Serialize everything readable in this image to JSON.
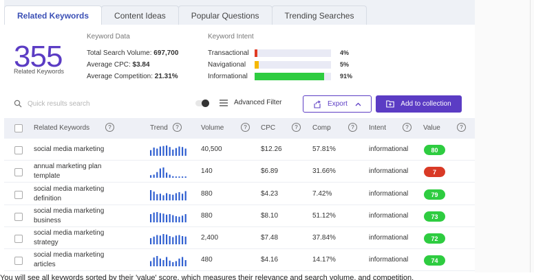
{
  "tabs": [
    {
      "label": "Related Keywords",
      "active": true
    },
    {
      "label": "Content Ideas",
      "active": false
    },
    {
      "label": "Popular Questions",
      "active": false
    },
    {
      "label": "Trending Searches",
      "active": false
    }
  ],
  "summary": {
    "count": "355",
    "count_label": "Related Keywords",
    "keyword_data_title": "Keyword Data",
    "total_volume_label": "Total Search Volume:",
    "total_volume_value": "697,700",
    "avg_cpc_label": "Average CPC:",
    "avg_cpc_value": "$3.84",
    "avg_comp_label": "Average Competition:",
    "avg_comp_value": "21.31%"
  },
  "intent": {
    "title": "Keyword Intent",
    "items": [
      {
        "name": "Transactional",
        "pct_label": "4%",
        "pct": 4,
        "color": "#e03b24"
      },
      {
        "name": "Navigational",
        "pct_label": "5%",
        "pct": 5,
        "color": "#f5b800"
      },
      {
        "name": "Informational",
        "pct_label": "91%",
        "pct": 91,
        "color": "#2ecc40"
      }
    ]
  },
  "toolbar": {
    "search_placeholder": "Quick results search",
    "advanced_filter_label": "Advanced Filter",
    "export_label": "Export",
    "add_label": "Add to collection"
  },
  "table": {
    "headers": {
      "keyword": "Related Keywords",
      "trend": "Trend",
      "volume": "Volume",
      "cpc": "CPC",
      "comp": "Comp",
      "intent": "Intent",
      "value": "Value",
      "help": "?"
    },
    "rows": [
      {
        "kw1": "social media marketing",
        "kw2": "",
        "volume": "40,500",
        "cpc": "$12.26",
        "comp": "57.81%",
        "intent": "informational",
        "value": "80",
        "value_color": "#2ecc40",
        "trend": [
          0.55,
          0.8,
          0.7,
          0.9,
          0.95,
          1.0,
          0.85,
          0.6,
          0.75,
          0.9,
          0.85,
          0.7
        ]
      },
      {
        "kw1": "annual marketing plan",
        "kw2": "template",
        "volume": "140",
        "cpc": "$6.89",
        "comp": "31.66%",
        "intent": "informational",
        "value": "7",
        "value_color": "#d93a26",
        "trend": [
          0.25,
          0.3,
          0.55,
          0.9,
          1.0,
          0.5,
          0.3,
          0.15,
          0.12,
          0.12,
          0.12,
          0.12
        ]
      },
      {
        "kw1": "social media marketing",
        "kw2": "definition",
        "volume": "880",
        "cpc": "$4.23",
        "comp": "7.42%",
        "intent": "informational",
        "value": "79",
        "value_color": "#2ecc40",
        "trend": [
          1.0,
          0.85,
          0.6,
          0.65,
          0.5,
          0.7,
          0.6,
          0.55,
          0.7,
          0.8,
          0.65,
          0.9
        ]
      },
      {
        "kw1": "social media marketing",
        "kw2": "business",
        "volume": "880",
        "cpc": "$8.10",
        "comp": "51.12%",
        "intent": "informational",
        "value": "73",
        "value_color": "#2ecc40",
        "trend": [
          0.8,
          0.95,
          1.0,
          0.9,
          0.85,
          0.75,
          0.8,
          0.7,
          0.6,
          0.55,
          0.65,
          0.8
        ]
      },
      {
        "kw1": "social media marketing",
        "kw2": "strategy",
        "volume": "2,400",
        "cpc": "$7.48",
        "comp": "37.84%",
        "intent": "informational",
        "value": "72",
        "value_color": "#2ecc40",
        "trend": [
          0.6,
          0.75,
          0.9,
          0.85,
          1.0,
          0.95,
          0.8,
          0.7,
          0.85,
          0.9,
          0.8,
          0.75
        ]
      },
      {
        "kw1": "social media marketing",
        "kw2": "articles",
        "volume": "480",
        "cpc": "$4.16",
        "comp": "14.17%",
        "intent": "informational",
        "value": "74",
        "value_color": "#2ecc40",
        "trend": [
          0.5,
          0.85,
          1.0,
          0.75,
          0.6,
          0.9,
          0.55,
          0.4,
          0.5,
          0.75,
          0.9,
          0.6
        ]
      }
    ]
  },
  "footer": {
    "text": "You will see all keywords sorted by their 'value' score, which measures their relevance and search volume, and competition."
  }
}
